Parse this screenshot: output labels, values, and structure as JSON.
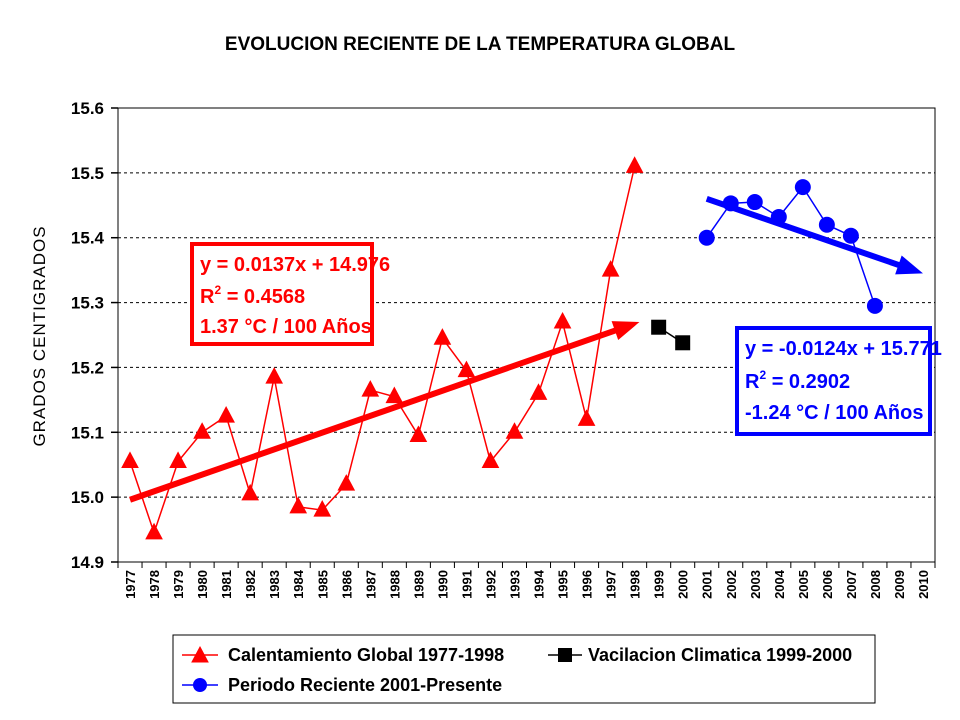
{
  "chart_data": {
    "type": "line",
    "title": "EVOLUCION RECIENTE DE LA TEMPERATURA GLOBAL",
    "ylabel": "GRADOS CENTIGRADOS",
    "ylim": [
      14.9,
      15.6
    ],
    "yticks": [
      "14.9",
      "15.0",
      "15.1",
      "15.2",
      "15.3",
      "15.4",
      "15.5",
      "15.6"
    ],
    "xlim": [
      1977,
      2010
    ],
    "x_categories": [
      "1977",
      "1978",
      "1979",
      "1980",
      "1981",
      "1982",
      "1983",
      "1984",
      "1985",
      "1986",
      "1987",
      "1988",
      "1989",
      "1990",
      "1991",
      "1992",
      "1993",
      "1994",
      "1995",
      "1996",
      "1997",
      "1998",
      "1999",
      "2000",
      "2001",
      "2002",
      "2003",
      "2004",
      "2005",
      "2006",
      "2007",
      "2008",
      "2009",
      "2010"
    ],
    "grid": "horizontal-dashed",
    "series": [
      {
        "name": "Calentamiento Global 1977-1998",
        "color": "#ff0000",
        "marker": "triangle",
        "x": [
          1977,
          1978,
          1979,
          1980,
          1981,
          1982,
          1983,
          1984,
          1985,
          1986,
          1987,
          1988,
          1989,
          1990,
          1991,
          1992,
          1993,
          1994,
          1995,
          1996,
          1997,
          1998
        ],
        "y": [
          15.055,
          14.945,
          15.055,
          15.1,
          15.125,
          15.005,
          15.185,
          14.985,
          14.98,
          15.02,
          15.165,
          15.155,
          15.095,
          15.245,
          15.195,
          15.055,
          15.1,
          15.16,
          15.27,
          15.12,
          15.35,
          15.51
        ]
      },
      {
        "name": "Vacilacion Climatica 1999-2000",
        "color": "#000000",
        "marker": "square",
        "x": [
          1999,
          2000
        ],
        "y": [
          15.262,
          15.238
        ]
      },
      {
        "name": "Periodo Reciente 2001-Presente",
        "color": "#0000ff",
        "marker": "circle",
        "x": [
          2001,
          2002,
          2003,
          2004,
          2005,
          2006,
          2007,
          2008
        ],
        "y": [
          15.4,
          15.453,
          15.455,
          15.432,
          15.478,
          15.42,
          15.403,
          15.295
        ]
      }
    ],
    "trendlines": [
      {
        "series": "Calentamiento Global 1977-1998",
        "color": "#ff0000",
        "x": [
          1977,
          1998.2
        ],
        "y": [
          14.996,
          15.27
        ]
      },
      {
        "series": "Periodo Reciente 2001-Presente",
        "color": "#0000ff",
        "x": [
          2001,
          2010
        ],
        "y": [
          15.46,
          15.345
        ]
      }
    ],
    "annotations": [
      {
        "id": "red",
        "color": "#ff0000",
        "position": "upper-left",
        "equation": "y = 0.0137x + 14.976",
        "r2_prefix": "R",
        "r2_sup": "2",
        "r2_value": " = 0.4568",
        "rate": "1.37 °C / 100 Años"
      },
      {
        "id": "blue",
        "color": "#0000ff",
        "position": "right",
        "equation": "y = -0.0124x + 15.771",
        "r2_prefix": "R",
        "r2_sup": "2",
        "r2_value": " = 0.2902",
        "rate": "-1.24 °C / 100 Años"
      }
    ],
    "legend_position": "bottom"
  }
}
